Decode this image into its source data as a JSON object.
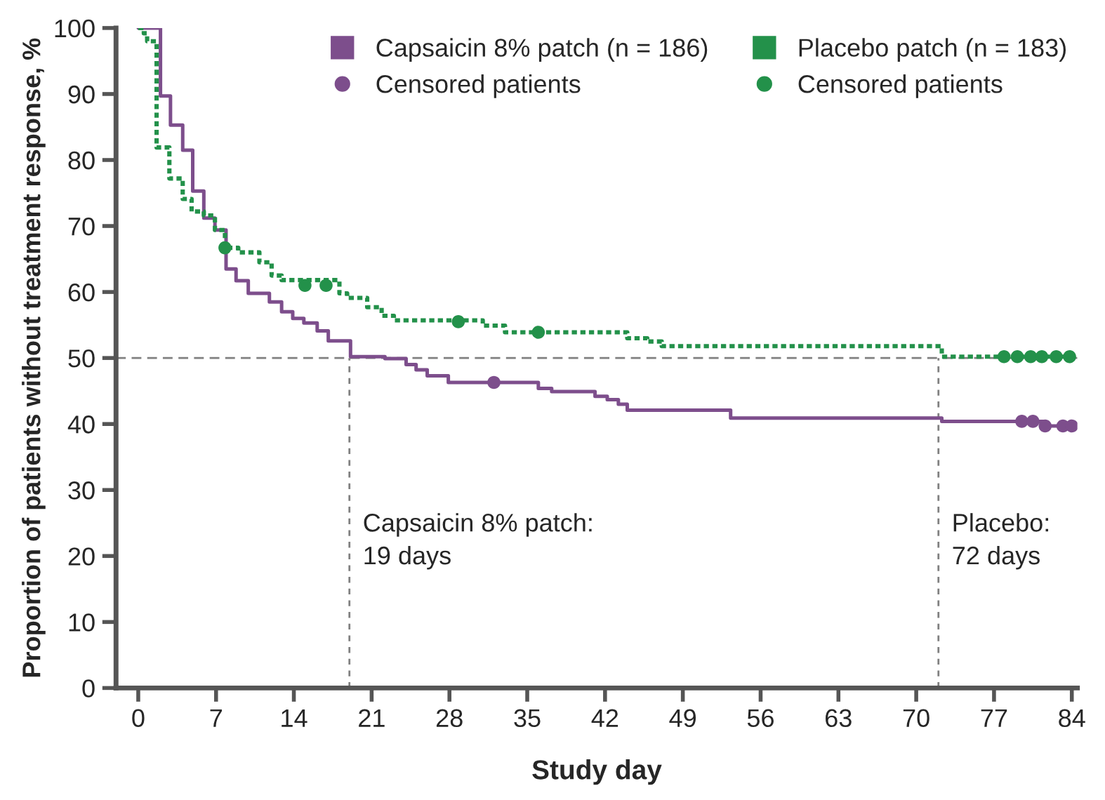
{
  "chart_data": {
    "type": "step",
    "xlabel": "Study day",
    "ylabel": "Proportion of patients without treatment response, %",
    "xlim": [
      -2,
      84.5
    ],
    "ylim": [
      0,
      100
    ],
    "xticks": [
      0,
      7,
      14,
      21,
      28,
      35,
      42,
      49,
      56,
      63,
      70,
      77,
      84
    ],
    "yticks": [
      0,
      10,
      20,
      30,
      40,
      50,
      60,
      70,
      80,
      90,
      100
    ],
    "grid": false,
    "legend": "top right",
    "series": [
      {
        "name": "Capsaicin 8% patch (n = 186)",
        "color": "#7d4e8c",
        "line_style": "solid",
        "marker": "none",
        "x": [
          0,
          2,
          2.9,
          4,
          4.9,
          5.9,
          6.9,
          7.9,
          8.8,
          9.9,
          11.8,
          12.9,
          13.9,
          14.9,
          16.1,
          17.1,
          19.1,
          22.2,
          24.1,
          25,
          26,
          27.9,
          36,
          37.2,
          41.1,
          42.2,
          43.2,
          44,
          53.3,
          72.3,
          81.6,
          84
        ],
        "values": [
          100,
          89.7,
          85.3,
          81.5,
          75.3,
          71.2,
          69.4,
          63.5,
          61.7,
          59.8,
          58.5,
          57,
          56,
          55.3,
          54.1,
          52.6,
          50.2,
          49.9,
          49,
          48.2,
          47.3,
          46.3,
          45.4,
          44.9,
          44.2,
          43.7,
          43,
          42.1,
          40.9,
          40.4,
          39.7,
          39.7
        ]
      },
      {
        "name": "Censored patients",
        "type": "scatter",
        "color": "#7d4e8c",
        "marker": "circle",
        "x": [
          32,
          79.5,
          80.5,
          81.6,
          83.2,
          84
        ],
        "values": [
          46.3,
          40.4,
          40.4,
          39.7,
          39.7,
          39.7
        ]
      },
      {
        "name": "Placebo patch (n = 183)",
        "color": "#23914a",
        "line_style": "dotted",
        "marker": "none",
        "x": [
          0,
          0.5,
          0.8,
          1.65,
          2.8,
          4,
          4.8,
          5.9,
          6.9,
          7.8,
          9,
          10.9,
          12,
          12.9,
          18.1,
          18.8,
          20.6,
          21.9,
          23,
          31,
          33,
          44,
          45.8,
          47.1,
          72.3,
          84
        ],
        "values": [
          100,
          99.2,
          98,
          81.9,
          77.2,
          74.1,
          72.2,
          71.6,
          69.4,
          66.7,
          66,
          64.5,
          62.5,
          61.8,
          59.8,
          59.1,
          57.7,
          56.4,
          55.7,
          54.9,
          53.9,
          53,
          52.5,
          51.8,
          50.2,
          50.2
        ]
      },
      {
        "name": "Censored patients",
        "type": "scatter",
        "color": "#23914a",
        "marker": "circle",
        "x": [
          7.8,
          15,
          16.9,
          28.8,
          36,
          77.9,
          79.1,
          80.3,
          81.3,
          82.6,
          83.8
        ],
        "values": [
          66.7,
          61,
          61,
          55.5,
          53.9,
          50.2,
          50.2,
          50.2,
          50.2,
          50.2,
          50.2
        ]
      }
    ],
    "ref_lines": [
      {
        "axis": "y",
        "value": 50,
        "color": "#808080",
        "line_style": "dashed"
      },
      {
        "axis": "x",
        "value": 19,
        "label": "Capsaicin 8% patch:\n19 days",
        "color": "#808080",
        "line_style": "dashed"
      },
      {
        "axis": "x",
        "value": 72,
        "label": "Placebo:\n72 days",
        "color": "#808080",
        "line_style": "dashed"
      }
    ]
  }
}
